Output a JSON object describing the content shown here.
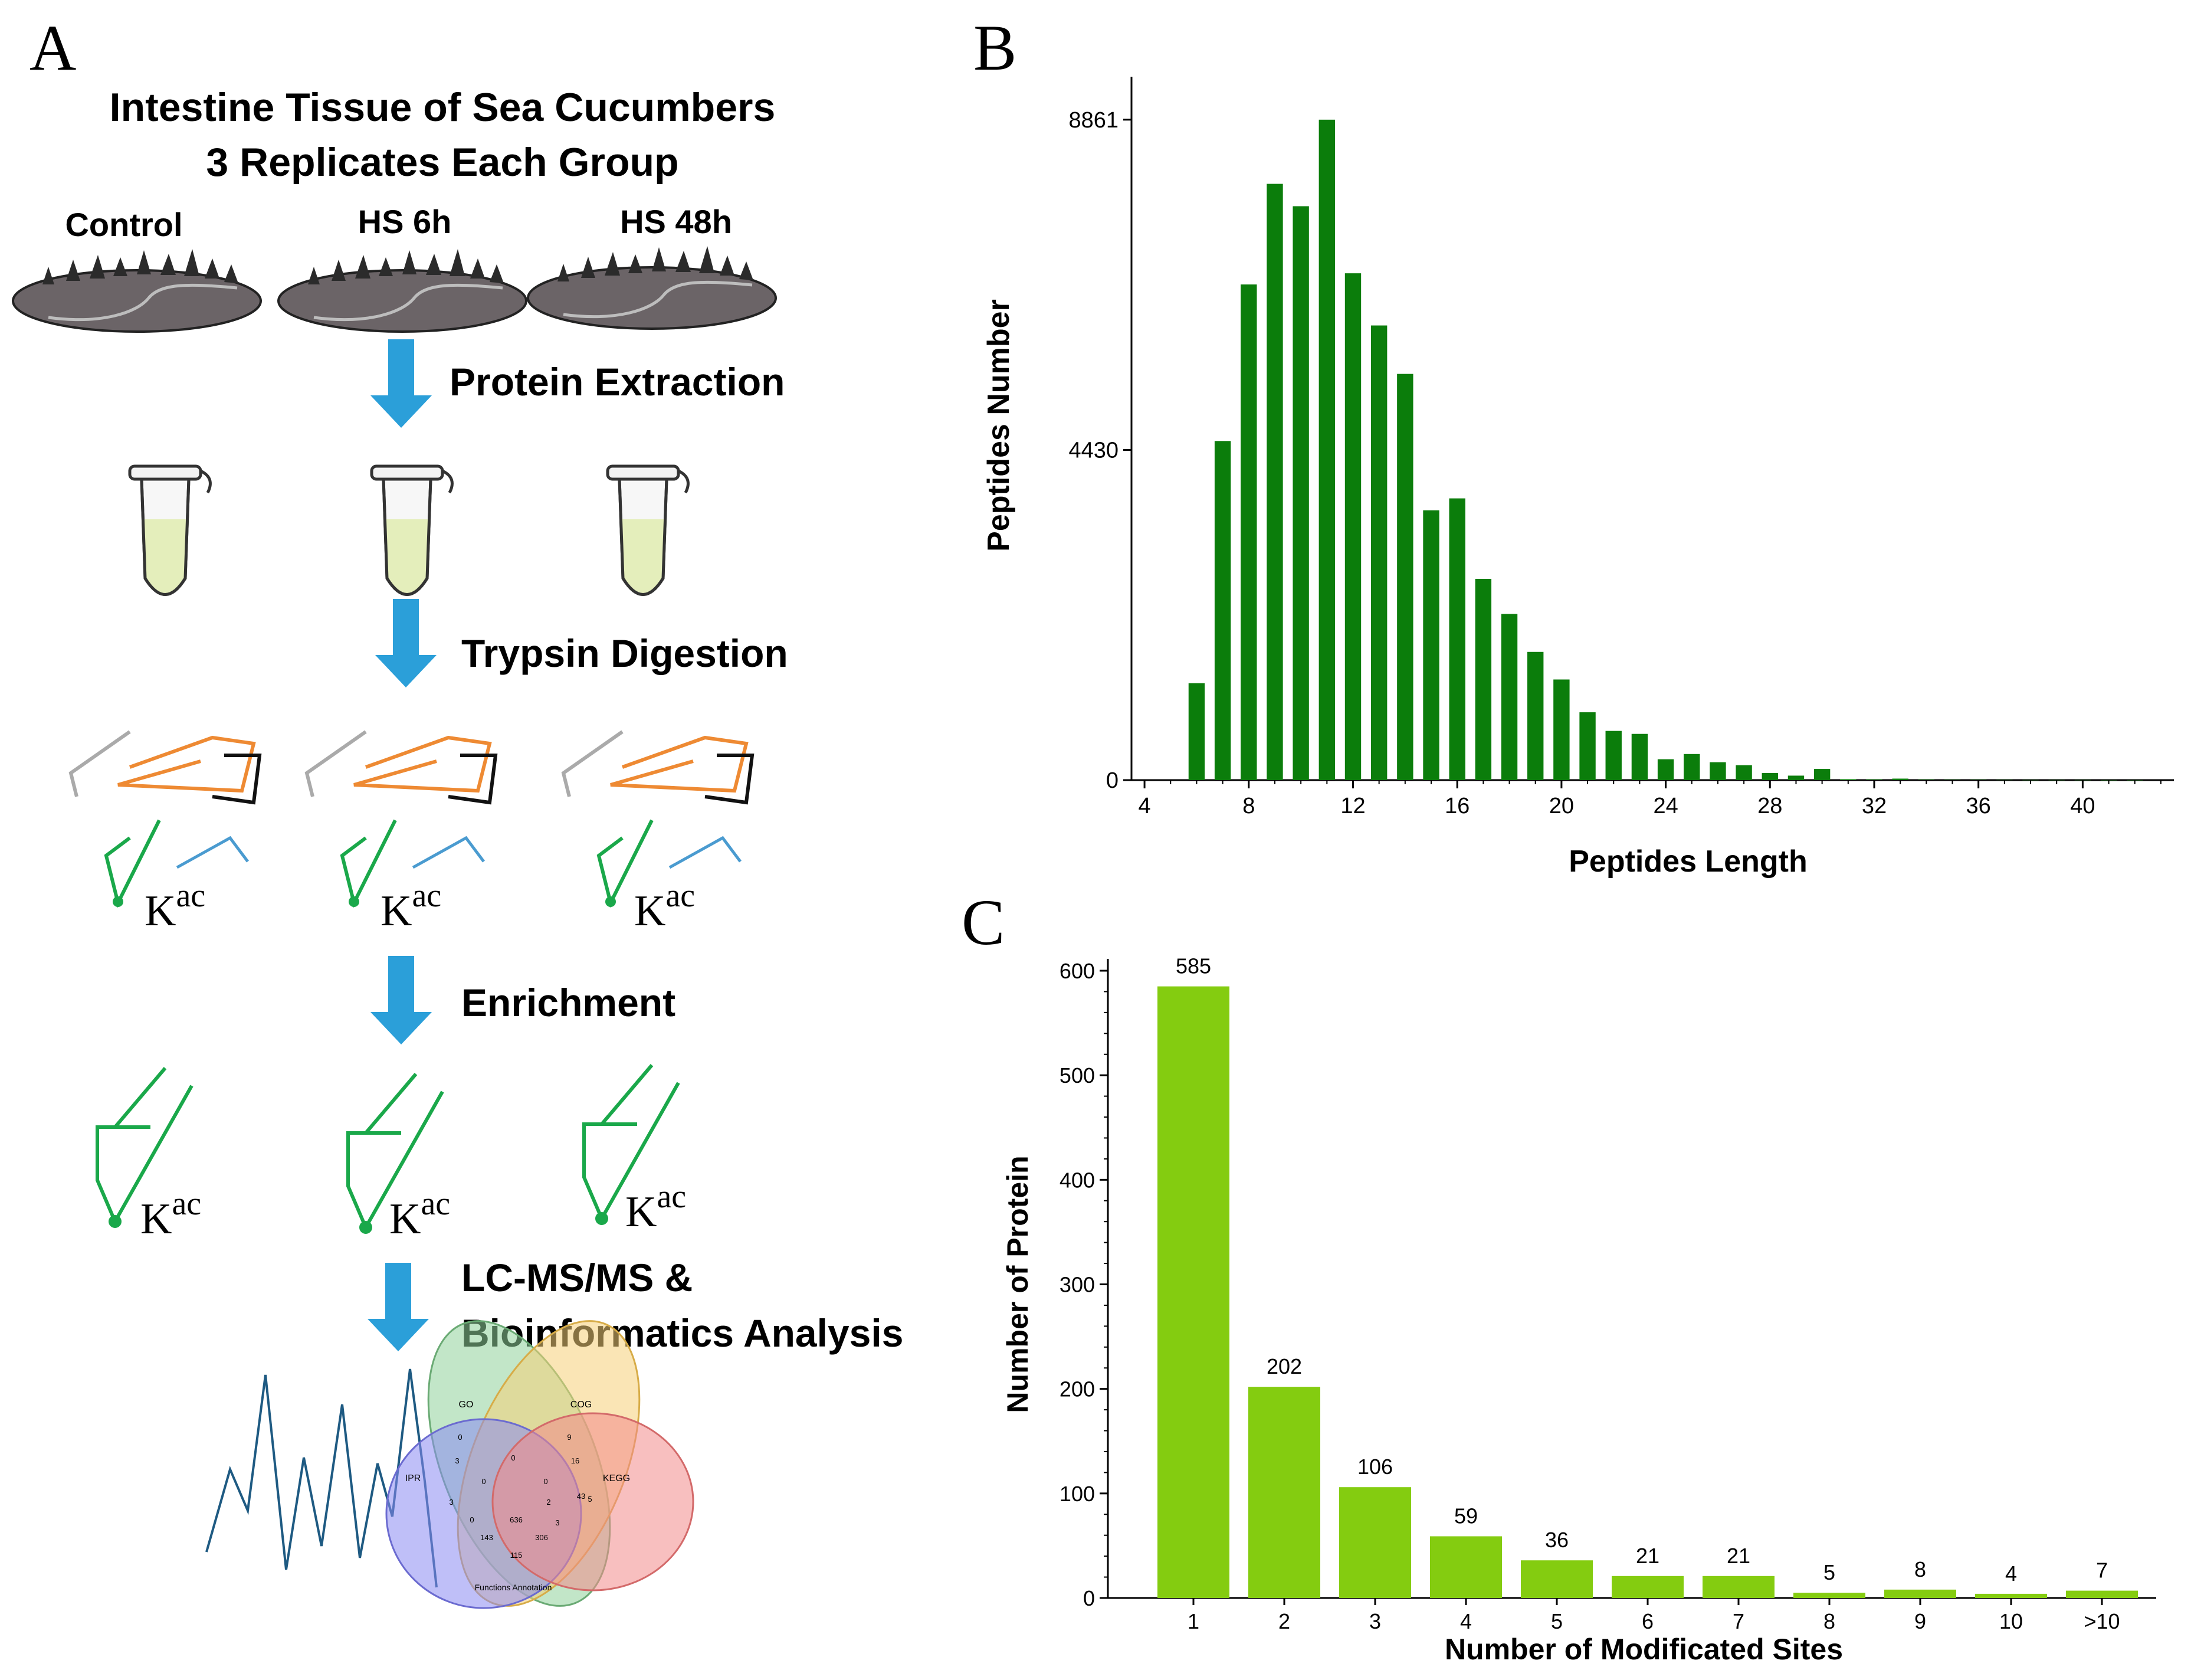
{
  "panelA": {
    "letter": "A",
    "title_line1": "Intestine Tissue of Sea Cucumbers",
    "title_line2": "3 Replicates Each Group",
    "groups": [
      "Control",
      "HS 6h",
      "HS 48h"
    ],
    "steps": [
      "Protein Extraction",
      "Trypsin Digestion",
      "Enrichment",
      "LC-MS/MS &",
      "Bioinformatics Analysis"
    ],
    "kac_base": "K",
    "kac_sup": "ac",
    "venn": {
      "sets": [
        "GO",
        "COG",
        "IPR",
        "KEGG"
      ],
      "numbers": [
        "0",
        "0",
        "9",
        "3",
        "0",
        "0",
        "16",
        "3",
        "2",
        "5",
        "43",
        "0",
        "636",
        "3",
        "143",
        "306",
        "115"
      ],
      "caption": "Functions Annotation"
    },
    "colors": {
      "arrow": "#2b9fd9",
      "kac_green": "#1aa84a",
      "orange": "#ee8a33",
      "gray": "#aaaaaa",
      "blue_line": "#4a9bd0",
      "tube_fill": "#e4eebb",
      "body_fill": "#6b6467"
    }
  },
  "panelB": {
    "letter": "B",
    "chart_data": {
      "type": "bar",
      "x": [
        6,
        7,
        8,
        9,
        10,
        11,
        12,
        13,
        14,
        15,
        16,
        17,
        18,
        19,
        20,
        21,
        22,
        23,
        24,
        25,
        26,
        27,
        28,
        29,
        30,
        31,
        32,
        33,
        34,
        35,
        36,
        37,
        38,
        39,
        40,
        41,
        42
      ],
      "values": [
        1300,
        4550,
        6650,
        8000,
        7700,
        8861,
        6800,
        6100,
        5450,
        3620,
        3780,
        2700,
        2230,
        1720,
        1350,
        910,
        660,
        620,
        280,
        350,
        240,
        200,
        95,
        60,
        150,
        12,
        8,
        20,
        6,
        4,
        4,
        3,
        2,
        2,
        2,
        1,
        1
      ],
      "xlabel": "Peptides Length",
      "ylabel": "Peptides Number",
      "xticks": [
        "4",
        "8",
        "12",
        "16",
        "20",
        "24",
        "28",
        "32",
        "36",
        "40"
      ],
      "yticks": [
        "0",
        "4430",
        "8861"
      ],
      "xlim": [
        3.5,
        43.5
      ],
      "ylim": [
        0,
        9200
      ],
      "color": "#0b7d0b"
    }
  },
  "panelC": {
    "letter": "C",
    "chart_data": {
      "type": "bar",
      "categories": [
        "1",
        "2",
        "3",
        "4",
        "5",
        "6",
        "7",
        "8",
        "9",
        "10",
        ">10"
      ],
      "values": [
        585,
        202,
        106,
        59,
        36,
        21,
        21,
        5,
        8,
        4,
        7
      ],
      "data_labels": [
        "585",
        "202",
        "106",
        "59",
        "36",
        "21",
        "21",
        "5",
        "8",
        "4",
        "7"
      ],
      "xlabel": "Number of Modificated Sites",
      "ylabel": "Number of Protein",
      "yticks": [
        "0",
        "100",
        "200",
        "300",
        "400",
        "500",
        "600"
      ],
      "ylim": [
        0,
        600
      ],
      "color": "#84cc10"
    }
  }
}
